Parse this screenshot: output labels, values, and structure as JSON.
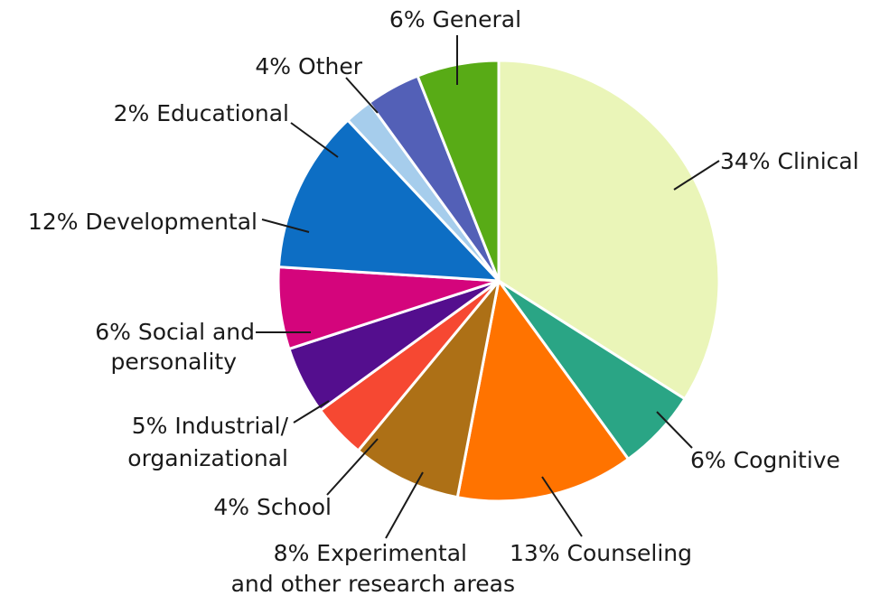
{
  "chart_data": {
    "type": "pie",
    "start_angle_deg": 0,
    "direction": "clockwise",
    "slices": [
      {
        "label": "34% Clinical",
        "value": 34,
        "color": "#eaf5b8"
      },
      {
        "label": "6% Cognitive",
        "value": 6,
        "color": "#2aa585"
      },
      {
        "label": "13% Counseling",
        "value": 13,
        "color": "#ff7300"
      },
      {
        "label": "8% Experimental and other research areas",
        "value": 8,
        "color": "#ad7016"
      },
      {
        "label": "4% School",
        "value": 4,
        "color": "#f64832"
      },
      {
        "label": "5% Industrial/ organizational",
        "value": 5,
        "color": "#540e8e"
      },
      {
        "label": "6% Social and personality",
        "value": 6,
        "color": "#d4057c"
      },
      {
        "label": "12% Developmental",
        "value": 12,
        "color": "#0d6ec4"
      },
      {
        "label": "2% Educational",
        "value": 2,
        "color": "#a6cdec"
      },
      {
        "label": "4% Other",
        "value": 4,
        "color": "#5360b7"
      },
      {
        "label": "6% General",
        "value": 6,
        "color": "#58ab16"
      }
    ]
  },
  "labels": {
    "clinical": "34% Clinical",
    "cognitive": "6% Cognitive",
    "counseling": "13% Counseling",
    "experimental_line1": "8% Experimental",
    "experimental_line2": "and other research areas",
    "school": "4% School",
    "industrial_line1": "5% Industrial/",
    "industrial_line2": "organizational",
    "social_line1": "6% Social and",
    "social_line2": "personality",
    "developmental": "12% Developmental",
    "educational": "2% Educational",
    "other": "4% Other",
    "general": "6% General"
  }
}
